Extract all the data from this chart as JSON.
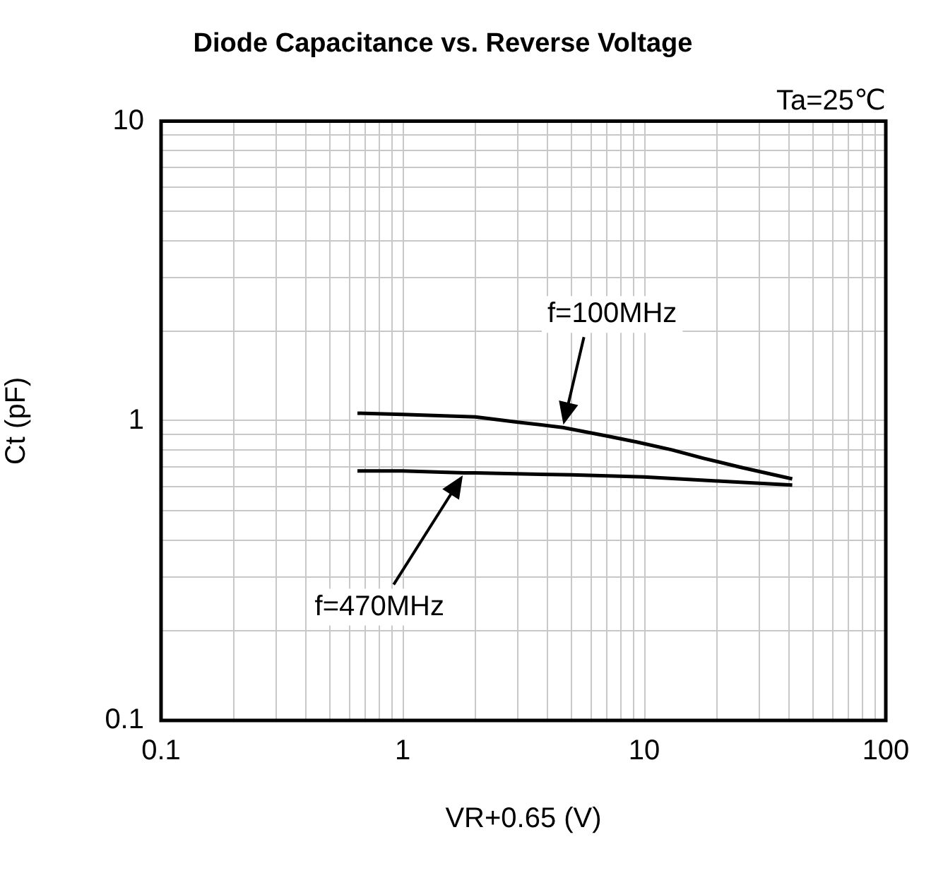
{
  "chart_data": {
    "type": "line",
    "title": "Diode Capacitance vs. Reverse Voltage",
    "xlabel": "VR+0.65 (V)",
    "ylabel": "Ct (pF)",
    "log": "xy",
    "grid": true,
    "marker": "none",
    "line_style": "solid",
    "xlim": [
      0.1,
      100
    ],
    "ylim": [
      0.1,
      10
    ],
    "xticks": [
      0.1,
      {
        "value": 0.2,
        "label": null
      },
      {
        "value": 0.3,
        "label": null
      },
      {
        "value": 0.4,
        "label": null
      },
      {
        "value": 0.5,
        "label": null
      },
      {
        "value": 0.6,
        "label": null
      },
      {
        "value": 0.7,
        "label": null
      },
      {
        "value": 0.8,
        "label": null
      },
      {
        "value": 0.9,
        "label": null
      },
      1,
      {
        "value": 2,
        "label": null
      },
      {
        "value": 3,
        "label": null
      },
      {
        "value": 4,
        "label": null
      },
      {
        "value": 5,
        "label": null
      },
      {
        "value": 6,
        "label": null
      },
      {
        "value": 7,
        "label": null
      },
      {
        "value": 8,
        "label": null
      },
      {
        "value": 9,
        "label": null
      },
      10,
      {
        "value": 20,
        "label": null
      },
      {
        "value": 30,
        "label": null
      },
      {
        "value": 40,
        "label": null
      },
      {
        "value": 50,
        "label": null
      },
      {
        "value": 60,
        "label": null
      },
      {
        "value": 70,
        "label": null
      },
      {
        "value": 80,
        "label": null
      },
      {
        "value": 90,
        "label": null
      },
      100
    ],
    "yticks": [
      0.1,
      {
        "value": 0.2,
        "label": null
      },
      {
        "value": 0.3,
        "label": null
      },
      {
        "value": 0.4,
        "label": null
      },
      {
        "value": 0.5,
        "label": null
      },
      {
        "value": 0.6,
        "label": null
      },
      {
        "value": 0.7,
        "label": null
      },
      {
        "value": 0.8,
        "label": null
      },
      {
        "value": 0.9,
        "label": null
      },
      1,
      {
        "value": 2,
        "label": null
      },
      {
        "value": 3,
        "label": null
      },
      {
        "value": 4,
        "label": null
      },
      {
        "value": 5,
        "label": null
      },
      {
        "value": 6,
        "label": null
      },
      {
        "value": 7,
        "label": null
      },
      {
        "value": 8,
        "label": null
      },
      {
        "value": 9,
        "label": null
      },
      10
    ],
    "series": [
      {
        "name": "f=100MHz",
        "color": "#000000",
        "x": [
          0.65,
          1,
          2,
          3,
          4.6,
          7,
          9.3,
          13,
          17.6,
          25,
          41
        ],
        "values": [
          1.06,
          1.05,
          1.03,
          0.99,
          0.95,
          0.89,
          0.85,
          0.8,
          0.75,
          0.7,
          0.64
        ]
      },
      {
        "name": "f=470MHz",
        "color": "#000000",
        "x": [
          0.65,
          1,
          1.8,
          2,
          5,
          10,
          20,
          41
        ],
        "values": [
          0.68,
          0.68,
          0.67,
          0.67,
          0.66,
          0.65,
          0.63,
          0.61
        ]
      }
    ],
    "annotations": [
      "Ta=25℃"
    ]
  }
}
